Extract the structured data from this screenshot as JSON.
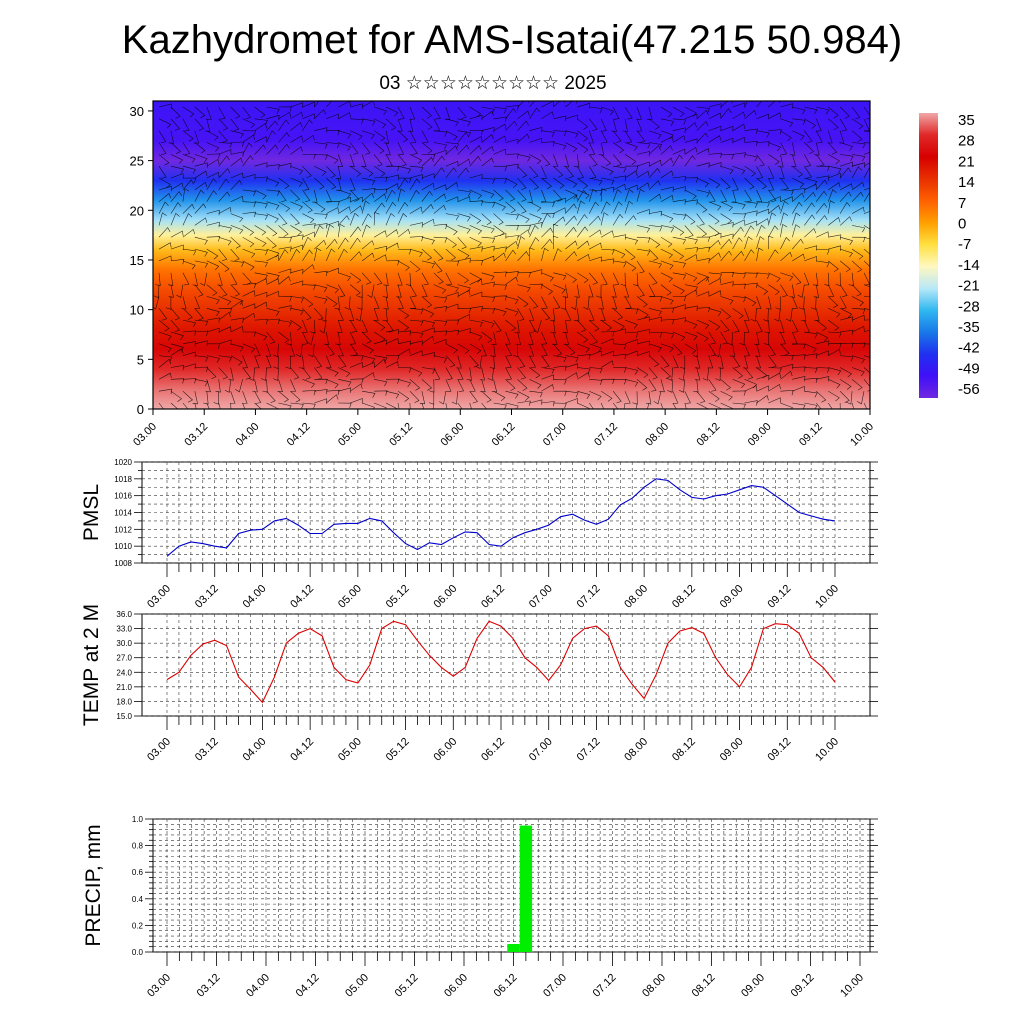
{
  "title": "Kazhydromet for AMS-Isatai(47.215 50.984)",
  "subtitle": "03 ☆☆☆☆☆☆☆☆☆ 2025",
  "colors": {
    "pmsl_line": "#0000cc",
    "temp_line": "#dd0000",
    "precip_bar": "#00ee00",
    "wind_barb": "#000000"
  },
  "chart_data": [
    {
      "id": "cross-section",
      "type": "heatmap",
      "title": "",
      "xlabel": "",
      "ylabel": "",
      "x_tick_labels": [
        "03.00",
        "03.12",
        "04.00",
        "04.12",
        "05.00",
        "05.12",
        "06.00",
        "06.12",
        "07.00",
        "07.12",
        "08.00",
        "08.12",
        "09.00",
        "09.12",
        "10.00"
      ],
      "y_ticks": [
        0,
        5,
        10,
        15,
        20,
        25,
        30
      ],
      "ylim": [
        0,
        31
      ],
      "overlay": "wind barbs",
      "colorbar": {
        "labels": [
          "35",
          "28",
          "21",
          "14",
          "7",
          "0",
          "-7",
          "-14",
          "-21",
          "-28",
          "-35",
          "-42",
          "-49",
          "-56"
        ],
        "colors": [
          "#f0a8a8",
          "#e02828",
          "#d60000",
          "#e83000",
          "#ff6000",
          "#ffa000",
          "#ffe040",
          "#fff8c0",
          "#b8e8f8",
          "#30b8f0",
          "#1878e8",
          "#2030f0",
          "#4010f8",
          "#7028e0"
        ]
      },
      "temperature_profile": {
        "z": [
          0,
          2,
          4,
          6,
          8,
          10,
          12,
          14,
          16,
          17.5,
          19,
          21,
          23,
          25,
          27,
          31
        ],
        "values": [
          35,
          32,
          28,
          22,
          18,
          14,
          10,
          5,
          -3,
          -12,
          -22,
          -32,
          -42,
          -56,
          -50,
          -48
        ]
      }
    },
    {
      "id": "pmsl",
      "type": "line",
      "ylabel": "PMSL",
      "ylim": [
        1008,
        1020
      ],
      "y_ticks": [
        "1008",
        "1010",
        "1012",
        "1014",
        "1016",
        "1018",
        "1020"
      ],
      "x_tick_labels": [
        "03.00",
        "03.12",
        "04.00",
        "04.12",
        "05.00",
        "05.12",
        "06.00",
        "06.12",
        "07.00",
        "07.12",
        "08.00",
        "08.12",
        "09.00",
        "09.12",
        "10.00"
      ],
      "grid": true,
      "series": [
        {
          "values": [
            1008.8,
            1010.0,
            1010.5,
            1010.3,
            1010.0,
            1009.8,
            1011.5,
            1011.9,
            1012.0,
            1013.0,
            1013.3,
            1012.5,
            1011.5,
            1011.5,
            1012.6,
            1012.7,
            1012.7,
            1013.3,
            1013.0,
            1011.6,
            1010.3,
            1009.6,
            1010.4,
            1010.2,
            1011.0,
            1011.7,
            1011.6,
            1010.2,
            1010.0,
            1011.0,
            1011.6,
            1012.0,
            1012.5,
            1013.5,
            1013.8,
            1013.1,
            1012.6,
            1013.2,
            1014.9,
            1015.7,
            1017.0,
            1018.0,
            1017.8,
            1016.7,
            1015.8,
            1015.6,
            1016.0,
            1016.2,
            1016.7,
            1017.2,
            1017.0,
            1016.0,
            1015.0,
            1014.0,
            1013.6,
            1013.2,
            1013.0
          ]
        }
      ]
    },
    {
      "id": "temp2m",
      "type": "line",
      "ylabel": "TEMP at 2 M",
      "ylim": [
        15,
        36
      ],
      "y_ticks": [
        "15.0",
        "18.0",
        "21.0",
        "24.0",
        "27.0",
        "30.0",
        "33.0",
        "36.0"
      ],
      "x_tick_labels": [
        "03.00",
        "03.12",
        "04.00",
        "04.12",
        "05.00",
        "05.12",
        "06.00",
        "06.12",
        "07.00",
        "07.12",
        "08.00",
        "08.12",
        "09.00",
        "09.12",
        "10.00"
      ],
      "grid": true,
      "series": [
        {
          "values": [
            22.5,
            24.0,
            27.5,
            29.8,
            30.6,
            29.5,
            23.0,
            20.5,
            17.8,
            23.0,
            30.0,
            32.0,
            33.0,
            31.5,
            25.0,
            22.5,
            21.8,
            25.5,
            33.0,
            34.5,
            33.8,
            30.5,
            27.5,
            25.0,
            23.2,
            25.0,
            31.0,
            34.5,
            33.5,
            31.0,
            27.0,
            25.0,
            22.3,
            25.5,
            31.0,
            33.0,
            33.5,
            31.5,
            25.0,
            21.5,
            18.6,
            23.5,
            30.0,
            32.5,
            33.2,
            32.0,
            27.0,
            23.5,
            21.0,
            25.0,
            33.0,
            34.0,
            33.8,
            32.0,
            27.0,
            25.0,
            22.0
          ]
        }
      ]
    },
    {
      "id": "precip",
      "type": "bar",
      "ylabel": "PRECIP, mm",
      "ylim": [
        0,
        1
      ],
      "y_ticks": [
        "0.0",
        "0.2",
        "0.4",
        "0.6",
        "0.8",
        "1.0"
      ],
      "x_tick_labels": [
        "03.00",
        "03.12",
        "04.00",
        "04.12",
        "05.00",
        "05.12",
        "06.00",
        "06.12",
        "07.00",
        "07.12",
        "08.00",
        "08.12",
        "09.00",
        "09.12",
        "10.00"
      ],
      "grid": true,
      "bars": [
        {
          "step": 28,
          "value": 0.06
        },
        {
          "step": 29,
          "value": 0.95
        }
      ]
    }
  ]
}
